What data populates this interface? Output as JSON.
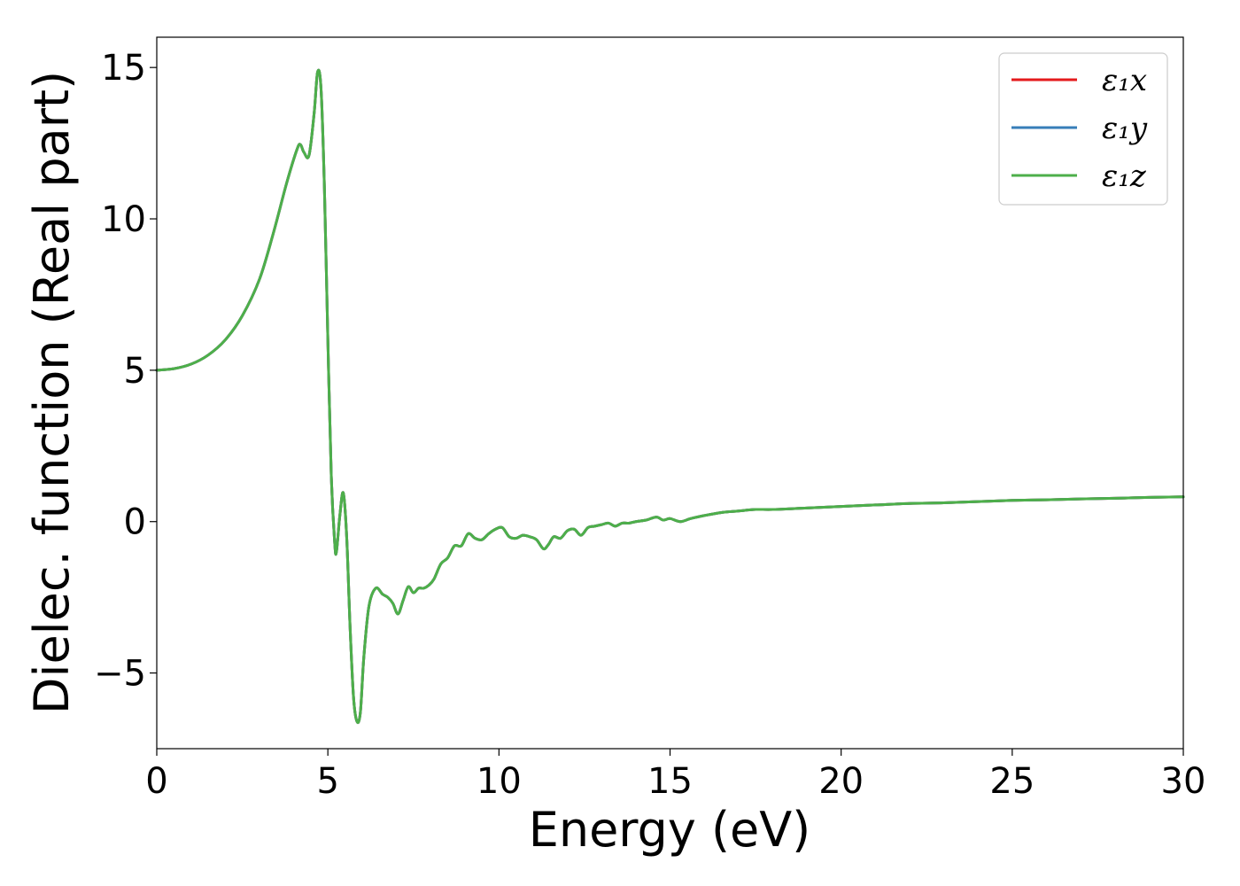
{
  "chart_data": {
    "type": "line",
    "title": "",
    "xlabel": "Energy (eV)",
    "ylabel": "Dielec. function (Real part)",
    "xlim": [
      0,
      30
    ],
    "ylim": [
      -7.5,
      16
    ],
    "x_ticks": [
      0,
      5,
      10,
      15,
      20,
      25,
      30
    ],
    "y_ticks": [
      -5,
      0,
      5,
      10,
      15
    ],
    "x_tick_labels": [
      "0",
      "5",
      "10",
      "15",
      "20",
      "25",
      "30"
    ],
    "y_tick_labels": [
      "−5",
      "0",
      "5",
      "10",
      "15"
    ],
    "grid": false,
    "legend": {
      "position": "top-right",
      "entries": [
        "ε₁x",
        "ε₁y",
        "ε₁z"
      ]
    },
    "x": [
      0,
      0.5,
      1.0,
      1.5,
      2.0,
      2.5,
      3.0,
      3.4,
      3.8,
      4.1,
      4.2,
      4.3,
      4.45,
      4.6,
      4.7,
      4.8,
      4.9,
      5.0,
      5.1,
      5.2,
      5.25,
      5.35,
      5.45,
      5.55,
      5.65,
      5.75,
      5.85,
      5.95,
      6.05,
      6.2,
      6.4,
      6.6,
      6.75,
      6.9,
      7.05,
      7.2,
      7.35,
      7.5,
      7.65,
      7.8,
      7.95,
      8.1,
      8.3,
      8.5,
      8.7,
      8.9,
      9.1,
      9.3,
      9.5,
      9.7,
      9.9,
      10.1,
      10.3,
      10.5,
      10.7,
      10.9,
      11.1,
      11.3,
      11.45,
      11.6,
      11.8,
      12.0,
      12.2,
      12.4,
      12.6,
      12.8,
      13.0,
      13.2,
      13.4,
      13.6,
      13.8,
      14.0,
      14.3,
      14.6,
      14.8,
      15.0,
      15.3,
      15.6,
      16.0,
      16.5,
      17.0,
      17.5,
      18.0,
      19.0,
      20.0,
      21.0,
      22.0,
      23.0,
      24.0,
      25.0,
      26.0,
      27.0,
      28.0,
      29.0,
      30.0
    ],
    "series": [
      {
        "name": "ε₁x",
        "color": "#e41a1c",
        "values": [
          5.0,
          5.05,
          5.2,
          5.5,
          6.0,
          6.8,
          8.0,
          9.5,
          11.2,
          12.3,
          12.45,
          12.2,
          12.1,
          13.5,
          14.85,
          14.3,
          11.0,
          6.0,
          1.5,
          -0.7,
          -1.0,
          0.2,
          0.95,
          -0.5,
          -3.5,
          -5.8,
          -6.6,
          -6.3,
          -4.5,
          -2.8,
          -2.2,
          -2.4,
          -2.5,
          -2.7,
          -3.05,
          -2.6,
          -2.15,
          -2.35,
          -2.2,
          -2.2,
          -2.1,
          -1.9,
          -1.4,
          -1.2,
          -0.8,
          -0.8,
          -0.4,
          -0.55,
          -0.6,
          -0.4,
          -0.25,
          -0.2,
          -0.5,
          -0.55,
          -0.45,
          -0.5,
          -0.6,
          -0.9,
          -0.75,
          -0.5,
          -0.55,
          -0.3,
          -0.25,
          -0.45,
          -0.2,
          -0.15,
          -0.1,
          -0.05,
          -0.15,
          -0.05,
          -0.05,
          0.0,
          0.05,
          0.15,
          0.05,
          0.1,
          0.0,
          0.1,
          0.2,
          0.3,
          0.35,
          0.4,
          0.4,
          0.45,
          0.5,
          0.55,
          0.6,
          0.62,
          0.66,
          0.7,
          0.72,
          0.75,
          0.77,
          0.8,
          0.82
        ]
      },
      {
        "name": "ε₁y",
        "color": "#377eb8",
        "values": [
          5.0,
          5.05,
          5.2,
          5.5,
          6.0,
          6.8,
          8.0,
          9.5,
          11.2,
          12.3,
          12.45,
          12.2,
          12.1,
          13.5,
          14.85,
          14.3,
          11.0,
          6.0,
          1.5,
          -0.7,
          -1.0,
          0.2,
          0.95,
          -0.5,
          -3.5,
          -5.8,
          -6.6,
          -6.3,
          -4.5,
          -2.8,
          -2.2,
          -2.4,
          -2.5,
          -2.7,
          -3.05,
          -2.6,
          -2.15,
          -2.35,
          -2.2,
          -2.2,
          -2.1,
          -1.9,
          -1.4,
          -1.2,
          -0.8,
          -0.8,
          -0.4,
          -0.55,
          -0.6,
          -0.4,
          -0.25,
          -0.2,
          -0.5,
          -0.55,
          -0.45,
          -0.5,
          -0.6,
          -0.9,
          -0.75,
          -0.5,
          -0.55,
          -0.3,
          -0.25,
          -0.45,
          -0.2,
          -0.15,
          -0.1,
          -0.05,
          -0.15,
          -0.05,
          -0.05,
          0.0,
          0.05,
          0.15,
          0.05,
          0.1,
          0.0,
          0.1,
          0.2,
          0.3,
          0.35,
          0.4,
          0.4,
          0.45,
          0.5,
          0.55,
          0.6,
          0.62,
          0.66,
          0.7,
          0.72,
          0.75,
          0.77,
          0.8,
          0.82
        ]
      },
      {
        "name": "ε₁z",
        "color": "#4daf4a",
        "values": [
          5.0,
          5.05,
          5.2,
          5.5,
          6.0,
          6.8,
          8.0,
          9.5,
          11.2,
          12.3,
          12.45,
          12.2,
          12.1,
          13.5,
          14.85,
          14.3,
          11.0,
          6.0,
          1.5,
          -0.7,
          -1.0,
          0.2,
          0.95,
          -0.5,
          -3.5,
          -5.8,
          -6.6,
          -6.3,
          -4.5,
          -2.8,
          -2.2,
          -2.4,
          -2.5,
          -2.7,
          -3.05,
          -2.6,
          -2.15,
          -2.35,
          -2.2,
          -2.2,
          -2.1,
          -1.9,
          -1.4,
          -1.2,
          -0.8,
          -0.8,
          -0.4,
          -0.55,
          -0.6,
          -0.4,
          -0.25,
          -0.2,
          -0.5,
          -0.55,
          -0.45,
          -0.5,
          -0.6,
          -0.9,
          -0.75,
          -0.5,
          -0.55,
          -0.3,
          -0.25,
          -0.45,
          -0.2,
          -0.15,
          -0.1,
          -0.05,
          -0.15,
          -0.05,
          -0.05,
          0.0,
          0.05,
          0.15,
          0.05,
          0.1,
          0.0,
          0.1,
          0.2,
          0.3,
          0.35,
          0.4,
          0.4,
          0.45,
          0.5,
          0.55,
          0.6,
          0.62,
          0.66,
          0.7,
          0.72,
          0.75,
          0.77,
          0.8,
          0.82
        ]
      }
    ]
  }
}
